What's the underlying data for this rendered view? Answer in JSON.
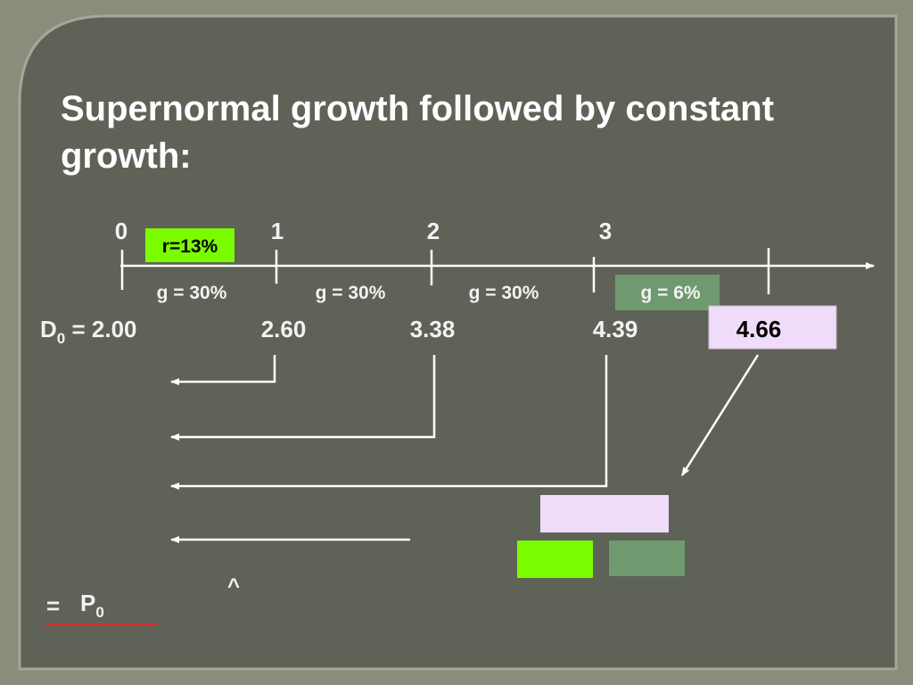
{
  "title": "Supernormal growth followed by constant growth:",
  "timeline": {
    "periods": [
      "0",
      "1",
      "2",
      "3"
    ],
    "rate": "r=13%",
    "growth": [
      "g = 30%",
      "g = 30%",
      "g = 30%",
      "g = 6%"
    ]
  },
  "dividends": {
    "first": {
      "symbol": "D",
      "subscript": "0",
      "text": " = 2.00"
    },
    "later": [
      "2.60",
      "3.38",
      "4.39",
      "4.66"
    ]
  },
  "result": {
    "hat": "^",
    "equals": "=",
    "symbol": "P",
    "subscript": "0"
  }
}
